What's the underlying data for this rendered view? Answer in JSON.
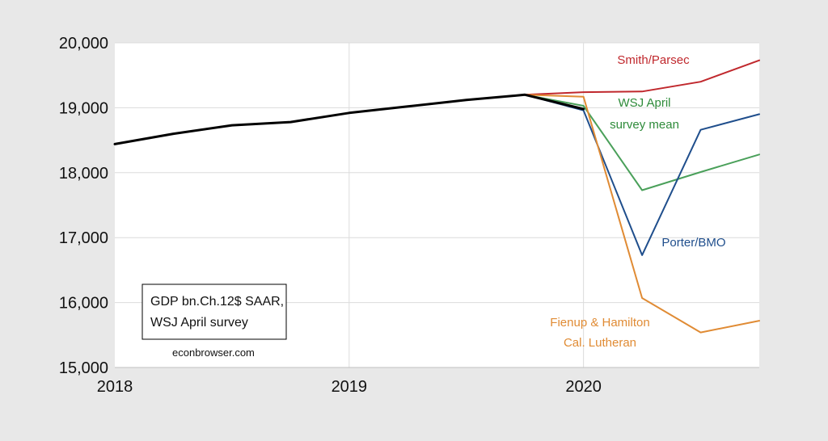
{
  "chart_data": {
    "type": "line",
    "title": "",
    "xlabel": "",
    "ylabel": "",
    "x_ticks": [
      "2018",
      "2019",
      "2020"
    ],
    "y_ticks": [
      "20,000",
      "19,000",
      "18,000",
      "17,000",
      "16,000",
      "15,000"
    ],
    "y_tick_values": [
      20000,
      19000,
      18000,
      17000,
      16000,
      15000
    ],
    "x_tick_values": [
      2018,
      2019,
      2020
    ],
    "xlim": [
      2018,
      2020.75
    ],
    "ylim": [
      15000,
      20000
    ],
    "grid": true,
    "series": [
      {
        "name": "",
        "color": "#000000",
        "x": [
          2018.0,
          2018.25,
          2018.5,
          2018.75,
          2019.0,
          2019.25,
          2019.5,
          2019.75,
          2020.0
        ],
        "values": [
          18440,
          18600,
          18730,
          18780,
          18920,
          19020,
          19120,
          19200,
          18980
        ]
      },
      {
        "name": "Smith/Parsec",
        "color": "#c0282d",
        "x": [
          2019.75,
          2020.0,
          2020.25,
          2020.5,
          2020.75
        ],
        "values": [
          19200,
          19240,
          19250,
          19400,
          19730
        ]
      },
      {
        "name": "WSJ April survey mean",
        "color": "#4aa05a",
        "x": [
          2019.75,
          2020.0,
          2020.25,
          2020.5,
          2020.75
        ],
        "values": [
          19200,
          19030,
          17730,
          18010,
          18280
        ]
      },
      {
        "name": "Porter/BMO",
        "color": "#1f4e8c",
        "x": [
          2019.75,
          2020.0,
          2020.25,
          2020.5,
          2020.75
        ],
        "values": [
          19200,
          18960,
          16730,
          18660,
          18900
        ]
      },
      {
        "name": "Fienup & Hamilton Cal. Lutheran",
        "color": "#e08b34",
        "x": [
          2019.75,
          2020.0,
          2020.25,
          2020.5,
          2020.75
        ],
        "values": [
          19200,
          19170,
          16070,
          15540,
          15720
        ]
      }
    ],
    "labels": [
      {
        "lines": [
          "Smith/Parsec"
        ],
        "color": "#c0282d"
      },
      {
        "lines": [
          "WSJ April",
          "survey mean"
        ],
        "color": "#2e8b3a"
      },
      {
        "lines": [
          "Porter/BMO"
        ],
        "color": "#1f4e8c"
      },
      {
        "lines": [
          "Fienup & Hamilton",
          "Cal. Lutheran"
        ],
        "color": "#e08b34"
      }
    ],
    "note": {
      "lines": [
        "GDP bn.Ch.12$ SAAR,",
        "WSJ April survey"
      ],
      "credit": "econbrowser.com"
    }
  }
}
